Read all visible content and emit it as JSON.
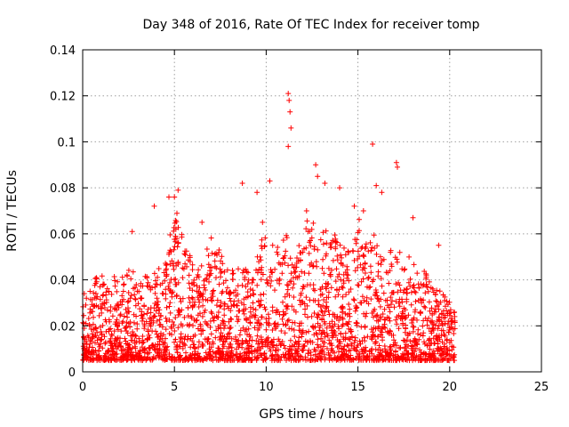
{
  "chart_data": {
    "type": "scatter",
    "title": "Day 348 of 2016, Rate Of TEC Index for receiver tomp",
    "xlabel": "GPS time / hours",
    "ylabel": "ROTI / TECUs",
    "xlim": [
      0,
      25
    ],
    "ylim": [
      0,
      0.14
    ],
    "xticks": [
      0,
      5,
      10,
      15,
      20,
      25
    ],
    "yticks": [
      0,
      0.02,
      0.04,
      0.06,
      0.08,
      0.1,
      0.12,
      0.14
    ],
    "xtick_labels": [
      "0",
      "5",
      "10",
      "15",
      "20",
      "25"
    ],
    "ytick_labels": [
      "0",
      "0.02",
      "0.04",
      "0.06",
      "0.08",
      "0.1",
      "0.12",
      "0.14"
    ],
    "grid": true,
    "marker": "plus",
    "color": "#ff0000",
    "density_envelope": {
      "description": "Dense cloud of plus markers from ~0 to ~20.3 h, mostly between 0.005 and 0.04 TECU",
      "x_range": [
        0,
        20.3
      ],
      "upper": [
        [
          0.0,
          0.038
        ],
        [
          0.5,
          0.035
        ],
        [
          0.8,
          0.044
        ],
        [
          1.5,
          0.04
        ],
        [
          2.0,
          0.04
        ],
        [
          2.5,
          0.045
        ],
        [
          3.0,
          0.038
        ],
        [
          3.5,
          0.042
        ],
        [
          4.0,
          0.045
        ],
        [
          4.5,
          0.05
        ],
        [
          5.0,
          0.07
        ],
        [
          5.5,
          0.058
        ],
        [
          6.0,
          0.045
        ],
        [
          6.5,
          0.048
        ],
        [
          7.0,
          0.062
        ],
        [
          7.5,
          0.05
        ],
        [
          8.0,
          0.045
        ],
        [
          8.5,
          0.046
        ],
        [
          9.0,
          0.045
        ],
        [
          9.5,
          0.05
        ],
        [
          10.0,
          0.065
        ],
        [
          10.5,
          0.055
        ],
        [
          11.0,
          0.06
        ],
        [
          11.5,
          0.05
        ],
        [
          12.0,
          0.06
        ],
        [
          12.5,
          0.07
        ],
        [
          13.0,
          0.058
        ],
        [
          13.5,
          0.065
        ],
        [
          14.0,
          0.058
        ],
        [
          14.5,
          0.05
        ],
        [
          15.0,
          0.065
        ],
        [
          15.5,
          0.06
        ],
        [
          16.0,
          0.058
        ],
        [
          16.5,
          0.045
        ],
        [
          17.0,
          0.055
        ],
        [
          17.5,
          0.05
        ],
        [
          18.0,
          0.05
        ],
        [
          18.5,
          0.045
        ],
        [
          19.0,
          0.04
        ],
        [
          19.5,
          0.035
        ],
        [
          20.0,
          0.03
        ],
        [
          20.3,
          0.028
        ]
      ]
    },
    "outliers": [
      [
        8.7,
        0.082
      ],
      [
        10.2,
        0.083
      ],
      [
        11.2,
        0.121
      ],
      [
        11.25,
        0.118
      ],
      [
        11.3,
        0.113
      ],
      [
        11.35,
        0.106
      ],
      [
        11.2,
        0.098
      ],
      [
        12.7,
        0.09
      ],
      [
        12.8,
        0.085
      ],
      [
        15.8,
        0.099
      ],
      [
        16.0,
        0.081
      ],
      [
        17.1,
        0.091
      ],
      [
        17.15,
        0.089
      ],
      [
        5.2,
        0.079
      ],
      [
        5.0,
        0.076
      ],
      [
        4.7,
        0.076
      ],
      [
        14.0,
        0.08
      ],
      [
        13.2,
        0.082
      ],
      [
        3.9,
        0.072
      ],
      [
        2.7,
        0.061
      ],
      [
        9.5,
        0.078
      ],
      [
        16.3,
        0.078
      ],
      [
        18.0,
        0.067
      ],
      [
        19.4,
        0.055
      ],
      [
        12.2,
        0.07
      ],
      [
        9.8,
        0.065
      ],
      [
        14.8,
        0.072
      ],
      [
        6.5,
        0.065
      ],
      [
        15.3,
        0.07
      ],
      [
        0.4,
        0.035
      ]
    ]
  }
}
